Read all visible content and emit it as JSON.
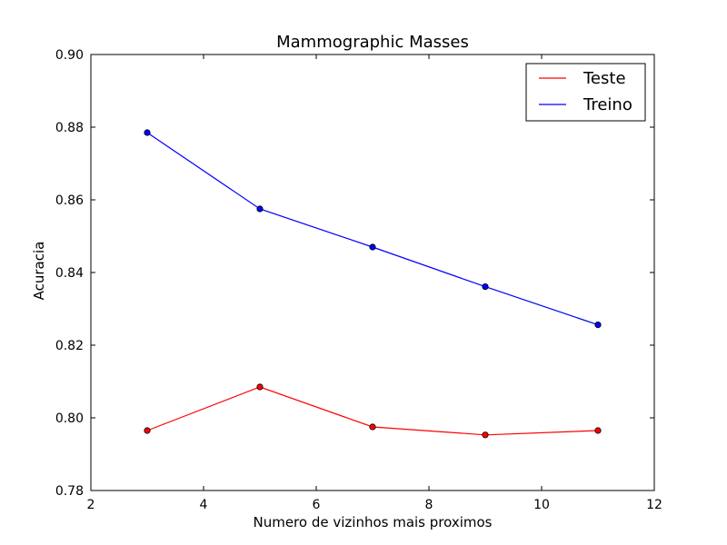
{
  "chart_data": {
    "type": "line",
    "title": "Mammographic Masses",
    "xlabel": "Numero de vizinhos mais proximos",
    "ylabel": "Acuracia",
    "xlim": [
      2,
      12
    ],
    "ylim": [
      0.78,
      0.9
    ],
    "xticks": [
      2,
      4,
      6,
      8,
      10,
      12
    ],
    "yticks": [
      0.78,
      0.8,
      0.82,
      0.84,
      0.86,
      0.88,
      0.9
    ],
    "ytick_labels": [
      "0.78",
      "0.80",
      "0.82",
      "0.84",
      "0.86",
      "0.88",
      "0.90"
    ],
    "grid": false,
    "legend": "top-right",
    "x": [
      3,
      5,
      7,
      9,
      11
    ],
    "series": [
      {
        "name": "Teste",
        "color": "#ff0000",
        "values": [
          0.7965,
          0.8085,
          0.7975,
          0.7953,
          0.7965
        ]
      },
      {
        "name": "Treino",
        "color": "#0000ff",
        "values": [
          0.8785,
          0.8575,
          0.847,
          0.8361,
          0.8256
        ]
      }
    ]
  }
}
